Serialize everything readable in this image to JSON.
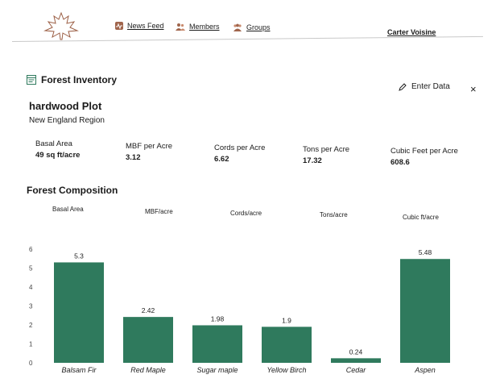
{
  "nav": {
    "items": [
      {
        "label": "News Feed",
        "icon": "news-icon"
      },
      {
        "label": "Members",
        "icon": "members-icon"
      },
      {
        "label": "Groups",
        "icon": "groups-icon"
      }
    ],
    "user": "Carter Voisine"
  },
  "header": {
    "title": "Forest Inventory",
    "enter_data_label": "Enter Data",
    "close_symbol": "×"
  },
  "plot": {
    "name": "hardwood Plot",
    "region": "New England Region"
  },
  "stats": [
    {
      "label": "Basal Area",
      "value": "49 sq ft/acre"
    },
    {
      "label": "MBF per Acre",
      "value": "3.12"
    },
    {
      "label": "Cords per Acre",
      "value": "6.62"
    },
    {
      "label": "Tons per Acre",
      "value": "17.32"
    },
    {
      "label": "Cubic Feet per Acre",
      "value": "608.6"
    }
  ],
  "composition": {
    "title": "Forest Composition",
    "metrics": [
      "Basal Area",
      "MBF/acre",
      "Cords/acre",
      "Tons/acre",
      "Cubic ft/acre"
    ]
  },
  "colors": {
    "bar": "#2f7a5d",
    "icon": "#a0654c"
  },
  "chart_data": {
    "type": "bar",
    "categories": [
      "Balsam Fir",
      "Red Maple",
      "Sugar maple",
      "Yellow Birch",
      "Cedar",
      "Aspen"
    ],
    "values": [
      5.3,
      2.42,
      1.98,
      1.9,
      0.24,
      5.48
    ],
    "y_ticks": [
      0,
      1,
      2,
      3,
      4,
      5,
      6
    ],
    "ylim": [
      0,
      6
    ],
    "grid": false,
    "legend": "none"
  }
}
